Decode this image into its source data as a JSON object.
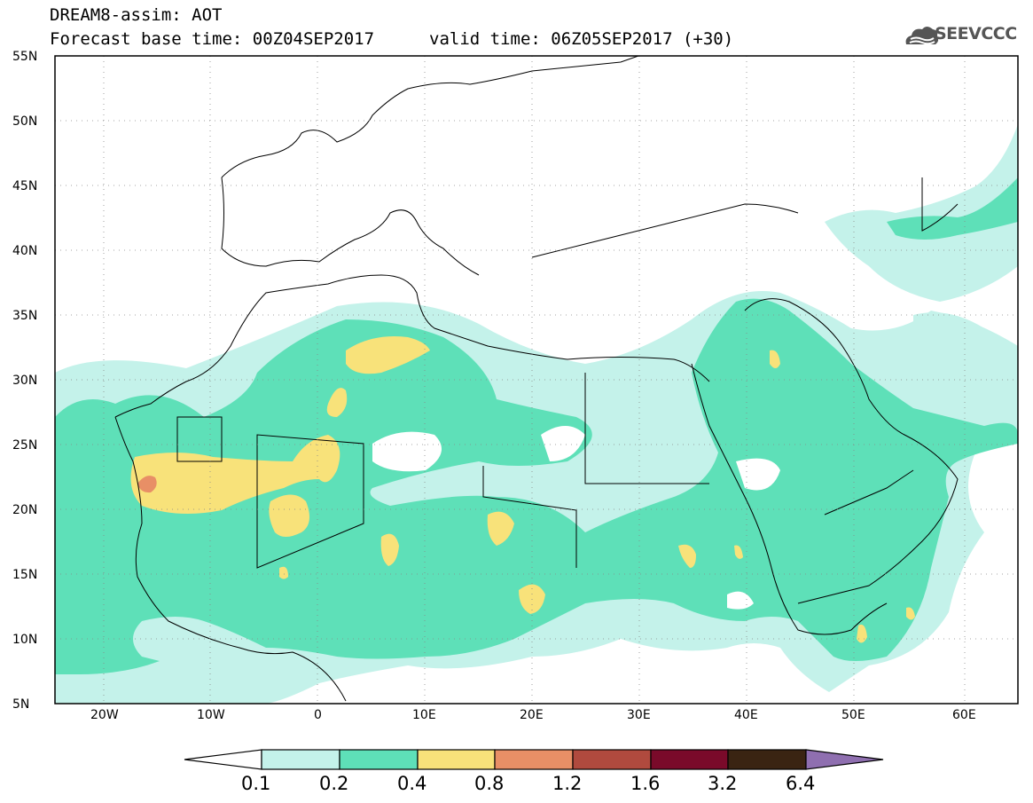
{
  "header": {
    "title_line1": "DREAM8-assim: AOT",
    "title_line2": "Forecast base time: 00Z04SEP2017",
    "valid_time": "valid time: 06Z05SEP2017 (+30)",
    "logo_text": "SEEVCCC"
  },
  "map": {
    "variable": "AOT",
    "lat_range": [
      5,
      55
    ],
    "lon_range": [
      -25,
      65
    ],
    "lat_labels": [
      "55N",
      "50N",
      "45N",
      "40N",
      "35N",
      "30N",
      "25N",
      "20N",
      "15N",
      "10N",
      "5N"
    ],
    "lon_labels": [
      "20W",
      "10W",
      "0",
      "10E",
      "20E",
      "30E",
      "40E",
      "50E",
      "60E"
    ]
  },
  "legend": {
    "labels": [
      "0.1",
      "0.2",
      "0.4",
      "0.8",
      "1.2",
      "1.6",
      "3.2",
      "6.4"
    ],
    "colors": [
      "#c4f2ea",
      "#5ee0b8",
      "#f8e27a",
      "#e88f66",
      "#b04a3e",
      "#7a0a2a",
      "#3a2412",
      "#8f6fb0"
    ]
  }
}
